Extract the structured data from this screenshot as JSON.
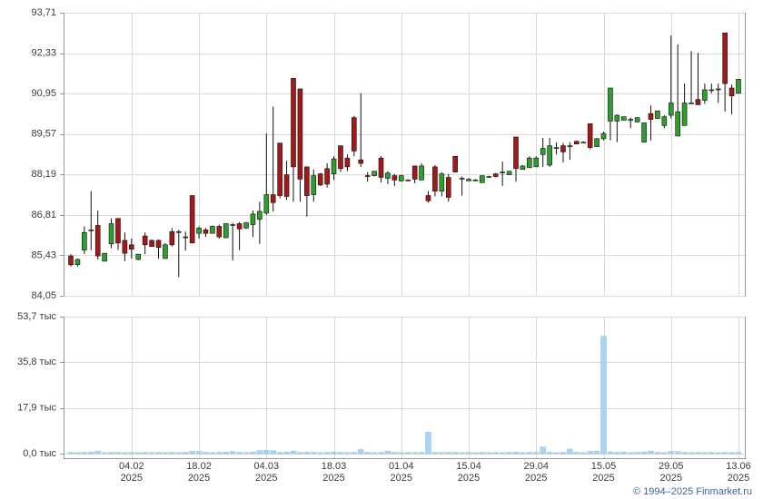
{
  "chart_data": [
    {
      "type": "candlestick",
      "ylim": [
        84.05,
        93.71
      ],
      "yticks": [
        {
          "value": 84.05,
          "label": "84,05"
        },
        {
          "value": 85.43,
          "label": "85,43"
        },
        {
          "value": 86.81,
          "label": "86,81"
        },
        {
          "value": 88.19,
          "label": "88,19"
        },
        {
          "value": 89.57,
          "label": "89,57"
        },
        {
          "value": 90.95,
          "label": "90,95"
        },
        {
          "value": 92.33,
          "label": "92,33"
        },
        {
          "value": 93.71,
          "label": "93,71"
        }
      ],
      "grid": true,
      "up_color": "#2f9e2f",
      "down_color": "#a3191b",
      "open": [
        85.41,
        85.11,
        85.61,
        86.27,
        86.45,
        85.23,
        85.82,
        86.69,
        85.94,
        85.79,
        85.29,
        86.09,
        85.94,
        85.94,
        85.32,
        86.24,
        86.24,
        86.06,
        87.47,
        86.18,
        86.3,
        86.18,
        86.42,
        86.03,
        86.48,
        86.51,
        86.36,
        86.48,
        86.66,
        86.87,
        87.5,
        89.26,
        88.18,
        91.47,
        91.11,
        88.45,
        87.5,
        88.21,
        88.39,
        88.21,
        89.17,
        88.75,
        90.13,
        88.69,
        88.15,
        88.15,
        88.75,
        88.06,
        88.15,
        87.97,
        88.0,
        88.48,
        88.0,
        87.47,
        88.45,
        87.62,
        88.09,
        88.81,
        88.06,
        87.97,
        88.0,
        87.91,
        88.12,
        88.21,
        88.27,
        88.18,
        89.47,
        88.36,
        88.42,
        88.45,
        88.87,
        88.51,
        89.11,
        89.17,
        89.17,
        89.32,
        89.29,
        89.92,
        89.14,
        89.41,
        90.01,
        90.01,
        90.04,
        90.07,
        89.98,
        89.29,
        90.27,
        90.1,
        89.86,
        90.21,
        89.5,
        89.86,
        90.63,
        90.75,
        90.72,
        91.08,
        91.11,
        93.02,
        91.14,
        90.96
      ],
      "high": [
        85.47,
        85.32,
        86.42,
        87.62,
        86.96,
        85.5,
        86.69,
        86.69,
        86.21,
        86.0,
        85.47,
        86.21,
        85.97,
        85.97,
        85.85,
        86.36,
        86.3,
        86.24,
        87.47,
        86.42,
        86.36,
        86.45,
        86.48,
        86.51,
        86.54,
        86.57,
        86.57,
        86.96,
        87.26,
        89.59,
        90.51,
        89.26,
        88.66,
        91.47,
        91.11,
        88.45,
        88.36,
        88.24,
        88.57,
        88.81,
        89.17,
        88.87,
        90.19,
        90.96,
        88.27,
        88.3,
        88.81,
        88.3,
        88.21,
        88.18,
        88.03,
        88.48,
        88.57,
        87.62,
        88.51,
        88.27,
        88.21,
        88.81,
        88.12,
        88.06,
        88.03,
        88.15,
        88.15,
        88.24,
        88.63,
        88.3,
        89.47,
        88.51,
        88.81,
        88.81,
        89.44,
        89.44,
        89.29,
        89.26,
        89.29,
        89.35,
        89.32,
        89.92,
        89.44,
        89.65,
        91.14,
        90.24,
        90.16,
        90.13,
        90.13,
        89.95,
        90.54,
        90.36,
        90.21,
        92.93,
        92.63,
        91.29,
        92.4,
        92.34,
        91.29,
        91.29,
        91.29,
        93.02,
        91.26,
        91.44
      ],
      "low": [
        85.05,
        85.05,
        85.47,
        85.61,
        85.29,
        85.23,
        85.67,
        85.61,
        85.23,
        85.32,
        85.26,
        85.47,
        85.73,
        85.32,
        85.32,
        85.73,
        84.69,
        85.59,
        85.85,
        86.0,
        86.06,
        86.18,
        86.0,
        86.03,
        85.26,
        85.61,
        86.33,
        86.06,
        85.82,
        86.81,
        86.93,
        87.38,
        87.32,
        87.26,
        87.26,
        86.75,
        87.26,
        87.8,
        87.74,
        88.0,
        88.27,
        88.3,
        88.81,
        88.45,
        87.94,
        88.12,
        87.91,
        87.86,
        87.8,
        87.94,
        87.97,
        87.89,
        88.0,
        87.23,
        87.44,
        87.44,
        87.26,
        88.27,
        87.47,
        87.97,
        87.97,
        87.91,
        88.09,
        88.09,
        87.8,
        88.18,
        87.94,
        88.36,
        88.42,
        88.45,
        88.45,
        88.45,
        88.87,
        88.6,
        88.69,
        89.23,
        89.26,
        89.05,
        89.14,
        89.35,
        89.35,
        89.29,
        90.04,
        89.77,
        89.98,
        89.29,
        89.35,
        90.1,
        89.77,
        90.1,
        89.5,
        89.86,
        90.6,
        90.57,
        90.6,
        90.96,
        90.63,
        90.33,
        90.24,
        90.96
      ],
      "close": [
        85.11,
        85.29,
        86.21,
        86.3,
        85.41,
        85.5,
        86.51,
        85.85,
        85.5,
        85.64,
        85.47,
        85.79,
        85.73,
        85.7,
        85.79,
        85.79,
        86.24,
        86.06,
        85.85,
        86.36,
        86.18,
        86.42,
        86.06,
        86.51,
        86.48,
        86.33,
        86.54,
        86.84,
        86.93,
        87.5,
        87.23,
        87.47,
        87.44,
        88.45,
        88.03,
        87.47,
        88.15,
        87.83,
        87.86,
        88.72,
        88.39,
        88.45,
        88.99,
        88.57,
        88.12,
        88.3,
        88.09,
        88.24,
        88.0,
        88.15,
        88.0,
        88.03,
        88.48,
        87.29,
        87.62,
        88.21,
        87.41,
        88.27,
        88.06,
        88.03,
        88.0,
        88.15,
        88.12,
        88.12,
        88.27,
        88.3,
        88.39,
        88.48,
        88.75,
        88.75,
        89.08,
        89.17,
        89.11,
        88.96,
        89.17,
        89.23,
        89.29,
        89.11,
        89.41,
        89.59,
        91.14,
        90.21,
        90.16,
        90.07,
        90.13,
        89.95,
        90.07,
        90.36,
        90.16,
        90.63,
        90.33,
        90.63,
        90.63,
        90.57,
        91.08,
        91.08,
        91.11,
        91.29,
        90.87,
        91.44
      ]
    },
    {
      "type": "bar",
      "categories": [
        null,
        null,
        null,
        null,
        null,
        null,
        null,
        null,
        null,
        "04.02",
        null,
        null,
        null,
        null,
        null,
        null,
        null,
        null,
        null,
        "18.02",
        null,
        null,
        null,
        null,
        null,
        null,
        null,
        null,
        null,
        "04.03",
        null,
        null,
        null,
        null,
        null,
        null,
        null,
        null,
        null,
        "18.03",
        null,
        null,
        null,
        null,
        null,
        null,
        null,
        null,
        null,
        "01.04",
        null,
        null,
        null,
        null,
        null,
        null,
        null,
        null,
        null,
        "15.04",
        null,
        null,
        null,
        null,
        null,
        null,
        null,
        null,
        null,
        "29.04",
        null,
        null,
        null,
        null,
        null,
        null,
        null,
        null,
        null,
        "15.05",
        null,
        null,
        null,
        null,
        null,
        null,
        null,
        null,
        null,
        "29.05",
        null,
        null,
        null,
        null,
        null,
        null,
        null,
        null,
        null,
        "13.06"
      ],
      "x_sublabel": "2025",
      "values": [
        0.5,
        0.4,
        0.5,
        0.6,
        1.0,
        0.4,
        0.5,
        0.5,
        0.4,
        0.5,
        0.4,
        0.5,
        0.4,
        0.5,
        0.4,
        0.5,
        0.4,
        0.5,
        0.9,
        0.9,
        0.5,
        0.4,
        0.5,
        0.6,
        0.8,
        0.5,
        0.4,
        0.6,
        1.2,
        1.3,
        1.2,
        0.5,
        0.6,
        1.0,
        0.5,
        0.6,
        0.5,
        0.4,
        0.5,
        0.6,
        0.5,
        0.4,
        0.5,
        1.6,
        0.5,
        0.4,
        0.5,
        1.0,
        0.5,
        0.4,
        0.5,
        0.4,
        0.5,
        8.5,
        0.5,
        0.4,
        0.5,
        0.5,
        0.4,
        0.5,
        0.4,
        0.5,
        0.4,
        0.5,
        0.4,
        0.5,
        0.6,
        0.4,
        0.5,
        0.5,
        2.6,
        0.5,
        0.4,
        0.5,
        1.8,
        0.5,
        0.4,
        0.9,
        1.0,
        46.0,
        0.7,
        0.5,
        0.6,
        0.4,
        0.5,
        0.6,
        1.0,
        0.5,
        0.4,
        0.9,
        0.8,
        0.5,
        0.4,
        0.5,
        0.4,
        0.5,
        0.4,
        0.5,
        0.4,
        0.5
      ],
      "ylim": [
        0,
        53.7
      ],
      "yticks": [
        {
          "value": 0,
          "label": "0,0 тыс"
        },
        {
          "value": 17.9,
          "label": "17,9 тыс"
        },
        {
          "value": 35.8,
          "label": "35,8 тыс"
        },
        {
          "value": 53.7,
          "label": "53,7 тыс"
        }
      ],
      "grid": true,
      "color": "#a9d3f2"
    }
  ],
  "footer": "© 1994–2025 Finmarket.ru"
}
